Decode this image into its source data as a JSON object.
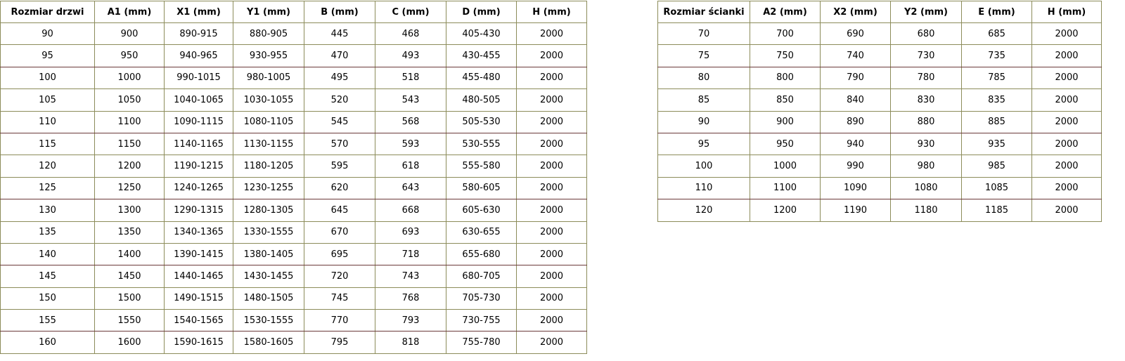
{
  "door_table": {
    "headers": [
      "Rozmiar drzwi",
      "A1 (mm)",
      "X1 (mm)",
      "Y1 (mm)",
      "B (mm)",
      "C (mm)",
      "D (mm)",
      "H (mm)"
    ],
    "rows": [
      [
        "90",
        "900",
        "890-915",
        "880-905",
        "445",
        "468",
        "405-430",
        "2000"
      ],
      [
        "95",
        "950",
        "940-965",
        "930-955",
        "470",
        "493",
        "430-455",
        "2000"
      ],
      [
        "100",
        "1000",
        "990-1015",
        "980-1005",
        "495",
        "518",
        "455-480",
        "2000"
      ],
      [
        "105",
        "1050",
        "1040-1065",
        "1030-1055",
        "520",
        "543",
        "480-505",
        "2000"
      ],
      [
        "110",
        "1100",
        "1090-1115",
        "1080-1105",
        "545",
        "568",
        "505-530",
        "2000"
      ],
      [
        "115",
        "1150",
        "1140-1165",
        "1130-1155",
        "570",
        "593",
        "530-555",
        "2000"
      ],
      [
        "120",
        "1200",
        "1190-1215",
        "1180-1205",
        "595",
        "618",
        "555-580",
        "2000"
      ],
      [
        "125",
        "1250",
        "1240-1265",
        "1230-1255",
        "620",
        "643",
        "580-605",
        "2000"
      ],
      [
        "130",
        "1300",
        "1290-1315",
        "1280-1305",
        "645",
        "668",
        "605-630",
        "2000"
      ],
      [
        "135",
        "1350",
        "1340-1365",
        "1330-1555",
        "670",
        "693",
        "630-655",
        "2000"
      ],
      [
        "140",
        "1400",
        "1390-1415",
        "1380-1405",
        "695",
        "718",
        "655-680",
        "2000"
      ],
      [
        "145",
        "1450",
        "1440-1465",
        "1430-1455",
        "720",
        "743",
        "680-705",
        "2000"
      ],
      [
        "150",
        "1500",
        "1490-1515",
        "1480-1505",
        "745",
        "768",
        "705-730",
        "2000"
      ],
      [
        "155",
        "1550",
        "1540-1565",
        "1530-1555",
        "770",
        "793",
        "730-755",
        "2000"
      ],
      [
        "160",
        "1600",
        "1590-1615",
        "1580-1605",
        "795",
        "818",
        "755-780",
        "2000"
      ]
    ]
  },
  "wall_table": {
    "headers": [
      "Rozmiar ścianki",
      "A2 (mm)",
      "X2 (mm)",
      "Y2 (mm)",
      "E (mm)",
      "H (mm)"
    ],
    "rows": [
      [
        "70",
        "700",
        "690",
        "680",
        "685",
        "2000"
      ],
      [
        "75",
        "750",
        "740",
        "730",
        "735",
        "2000"
      ],
      [
        "80",
        "800",
        "790",
        "780",
        "785",
        "2000"
      ],
      [
        "85",
        "850",
        "840",
        "830",
        "835",
        "2000"
      ],
      [
        "90",
        "900",
        "890",
        "880",
        "885",
        "2000"
      ],
      [
        "95",
        "950",
        "940",
        "930",
        "935",
        "2000"
      ],
      [
        "100",
        "1000",
        "990",
        "980",
        "985",
        "2000"
      ],
      [
        "110",
        "1100",
        "1090",
        "1080",
        "1085",
        "2000"
      ],
      [
        "120",
        "1200",
        "1190",
        "1180",
        "1185",
        "2000"
      ]
    ]
  }
}
